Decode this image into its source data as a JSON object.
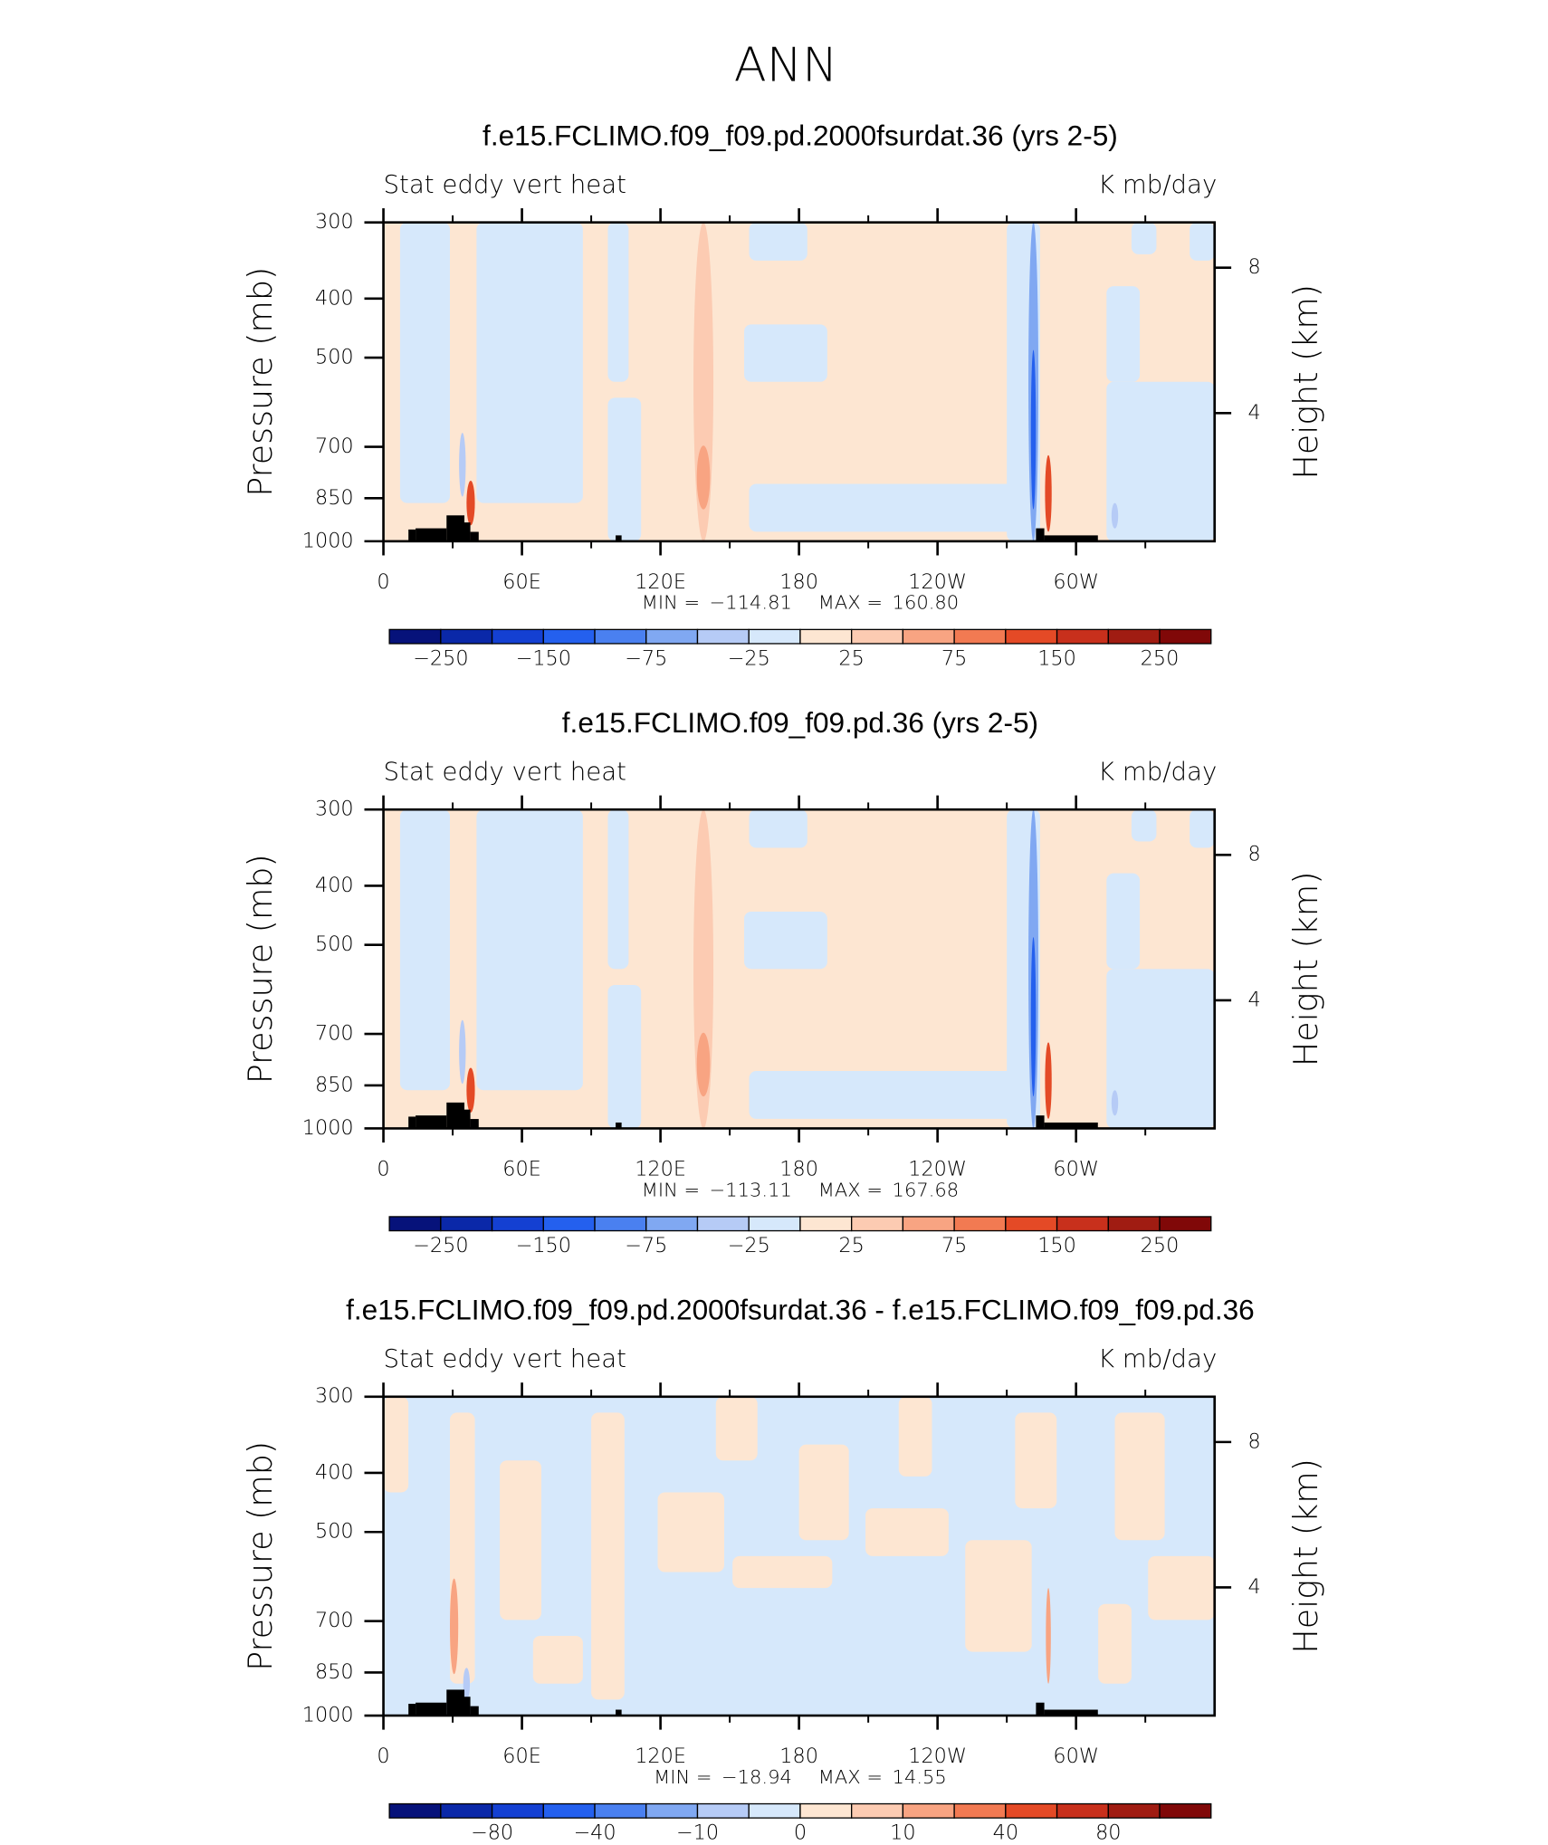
{
  "title": "ANN",
  "chart_data": [
    {
      "type": "contour",
      "title": "f.e15.FCLIMO.f09_f09.pd.2000fsurdat.36 (yrs 2-5)",
      "left_string": "Stat eddy vert heat",
      "right_string": "K mb/day",
      "ylabel": "Pressure (mb)",
      "y2label": "Height (km)",
      "xlim": [
        0,
        360
      ],
      "xticks": [
        0,
        {
          "value": 60,
          "label": "60E"
        },
        {
          "value": 120,
          "label": "120E"
        },
        180,
        {
          "value": 240,
          "label": "120W"
        },
        {
          "value": 300,
          "label": "60W"
        }
      ],
      "xminorticks": [
        30,
        90,
        150,
        210,
        270,
        330
      ],
      "ylim": [
        1000,
        300
      ],
      "ylog": true,
      "yticks": [
        300,
        400,
        500,
        700,
        850,
        1000
      ],
      "y2ticks": [
        4,
        8
      ],
      "stats": [
        {
          "name": "MIN =",
          "value": -114.81,
          "label": "−114.81"
        },
        {
          "name": "MAX =",
          "value": 160.8,
          "label": "160.80"
        }
      ],
      "colorbar": {
        "levels": [
          -250,
          -200,
          -150,
          -100,
          -75,
          -50,
          -25,
          0,
          25,
          50,
          75,
          100,
          150,
          200,
          250
        ],
        "colors": [
          "#06127a",
          "#0a28a8",
          "#1440d2",
          "#2460ee",
          "#4a80f0",
          "#80a8f2",
          "#b6cbf6",
          "#d6e8fb",
          "#fde6d2",
          "#fccbb2",
          "#f8a482",
          "#f27a52",
          "#e44a26",
          "#c8301c",
          "#a01c12",
          "#800808"
        ],
        "ticks": [
          {
            "value": -250,
            "label": "−250"
          },
          {
            "value": -150,
            "label": "−150"
          },
          {
            "value": -75,
            "label": "−75"
          },
          {
            "value": -25,
            "label": "−25"
          },
          25,
          75,
          150,
          250
        ]
      }
    },
    {
      "type": "contour",
      "title": "f.e15.FCLIMO.f09_f09.pd.36 (yrs 2-5)",
      "left_string": "Stat eddy vert heat",
      "right_string": "K mb/day",
      "ylabel": "Pressure (mb)",
      "y2label": "Height (km)",
      "xlim": [
        0,
        360
      ],
      "xticks": [
        0,
        {
          "value": 60,
          "label": "60E"
        },
        {
          "value": 120,
          "label": "120E"
        },
        180,
        {
          "value": 240,
          "label": "120W"
        },
        {
          "value": 300,
          "label": "60W"
        }
      ],
      "xminorticks": [
        30,
        90,
        150,
        210,
        270,
        330
      ],
      "ylim": [
        1000,
        300
      ],
      "ylog": true,
      "yticks": [
        300,
        400,
        500,
        700,
        850,
        1000
      ],
      "y2ticks": [
        4,
        8
      ],
      "stats": [
        {
          "name": "MIN =",
          "value": -113.11,
          "label": "−113.11"
        },
        {
          "name": "MAX =",
          "value": 167.68,
          "label": "167.68"
        }
      ],
      "colorbar": {
        "levels": [
          -250,
          -200,
          -150,
          -100,
          -75,
          -50,
          -25,
          0,
          25,
          50,
          75,
          100,
          150,
          200,
          250
        ],
        "colors": [
          "#06127a",
          "#0a28a8",
          "#1440d2",
          "#2460ee",
          "#4a80f0",
          "#80a8f2",
          "#b6cbf6",
          "#d6e8fb",
          "#fde6d2",
          "#fccbb2",
          "#f8a482",
          "#f27a52",
          "#e44a26",
          "#c8301c",
          "#a01c12",
          "#800808"
        ],
        "ticks": [
          {
            "value": -250,
            "label": "−250"
          },
          {
            "value": -150,
            "label": "−150"
          },
          {
            "value": -75,
            "label": "−75"
          },
          {
            "value": -25,
            "label": "−25"
          },
          25,
          75,
          150,
          250
        ]
      }
    },
    {
      "type": "contour",
      "title": "f.e15.FCLIMO.f09_f09.pd.2000fsurdat.36 - f.e15.FCLIMO.f09_f09.pd.36",
      "left_string": "Stat eddy vert heat",
      "right_string": "K mb/day",
      "ylabel": "Pressure (mb)",
      "y2label": "Height (km)",
      "xlim": [
        0,
        360
      ],
      "xticks": [
        0,
        {
          "value": 60,
          "label": "60E"
        },
        {
          "value": 120,
          "label": "120E"
        },
        180,
        {
          "value": 240,
          "label": "120W"
        },
        {
          "value": 300,
          "label": "60W"
        }
      ],
      "xminorticks": [
        30,
        90,
        150,
        210,
        270,
        330
      ],
      "ylim": [
        1000,
        300
      ],
      "ylog": true,
      "yticks": [
        300,
        400,
        500,
        700,
        850,
        1000
      ],
      "y2ticks": [
        4,
        8
      ],
      "stats": [
        {
          "name": "MIN =",
          "value": -18.94,
          "label": "−18.94"
        },
        {
          "name": "MAX =",
          "value": 14.55,
          "label": "14.55"
        }
      ],
      "colorbar": {
        "levels": [
          -100,
          -80,
          -60,
          -40,
          -20,
          -10,
          -5,
          0,
          5,
          10,
          20,
          40,
          60,
          80,
          100
        ],
        "colors": [
          "#06127a",
          "#0a28a8",
          "#1440d2",
          "#2460ee",
          "#4a80f0",
          "#80a8f2",
          "#b6cbf6",
          "#d6e8fb",
          "#fde6d2",
          "#fccbb2",
          "#f8a482",
          "#f27a52",
          "#e44a26",
          "#c8301c",
          "#a01c12",
          "#800808"
        ],
        "ticks": [
          {
            "value": -80,
            "label": "−80"
          },
          {
            "value": -40,
            "label": "−40"
          },
          {
            "value": -10,
            "label": "−10"
          },
          0,
          10,
          40,
          80
        ]
      }
    }
  ]
}
